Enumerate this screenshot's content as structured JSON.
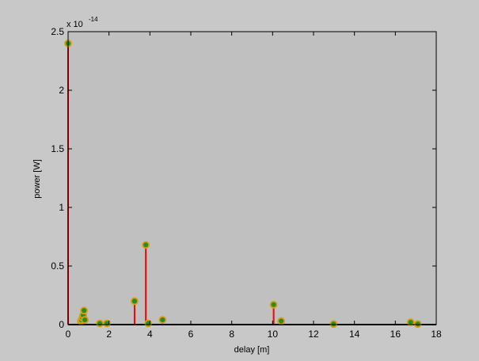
{
  "colors": {
    "figure_background": "#c8c8c8",
    "axes_background": "#c0c0c0",
    "stem": "#ff0000",
    "marker_edge": "#d4a017",
    "marker_fill": "#2e8b22",
    "axis": "#000000"
  },
  "chart_data": {
    "type": "stem",
    "title": "",
    "xlabel": "delay [m]",
    "ylabel": "power [W]",
    "y_exponent_label": {
      "base": "x 10",
      "exponent": "-14"
    },
    "xlim": [
      0,
      18
    ],
    "ylim": [
      0,
      2.5
    ],
    "xticks": [
      0,
      2,
      4,
      6,
      8,
      10,
      12,
      14,
      16,
      18
    ],
    "xtick_labels": [
      "0",
      "2",
      "4",
      "6",
      "8",
      "10",
      "12",
      "14",
      "16",
      "18"
    ],
    "yticks": [
      0,
      0.5,
      1,
      1.5,
      2,
      2.5
    ],
    "ytick_labels": [
      "0",
      "0.5",
      "1",
      "1.5",
      "2",
      "2.5"
    ],
    "grid": false,
    "points": [
      {
        "x": 0.0,
        "y": 2.4
      },
      {
        "x": 0.62,
        "y": 0.03
      },
      {
        "x": 0.66,
        "y": 0.04
      },
      {
        "x": 0.7,
        "y": 0.06
      },
      {
        "x": 0.74,
        "y": 0.08
      },
      {
        "x": 0.78,
        "y": 0.12
      },
      {
        "x": 0.82,
        "y": 0.04
      },
      {
        "x": 1.55,
        "y": 0.01
      },
      {
        "x": 1.9,
        "y": 0.01
      },
      {
        "x": 3.25,
        "y": 0.2
      },
      {
        "x": 3.8,
        "y": 0.68
      },
      {
        "x": 3.92,
        "y": 0.01
      },
      {
        "x": 4.62,
        "y": 0.04
      },
      {
        "x": 10.05,
        "y": 0.17
      },
      {
        "x": 10.42,
        "y": 0.03
      },
      {
        "x": 12.98,
        "y": 0.005
      },
      {
        "x": 16.75,
        "y": 0.02
      },
      {
        "x": 17.1,
        "y": 0.005
      }
    ]
  }
}
